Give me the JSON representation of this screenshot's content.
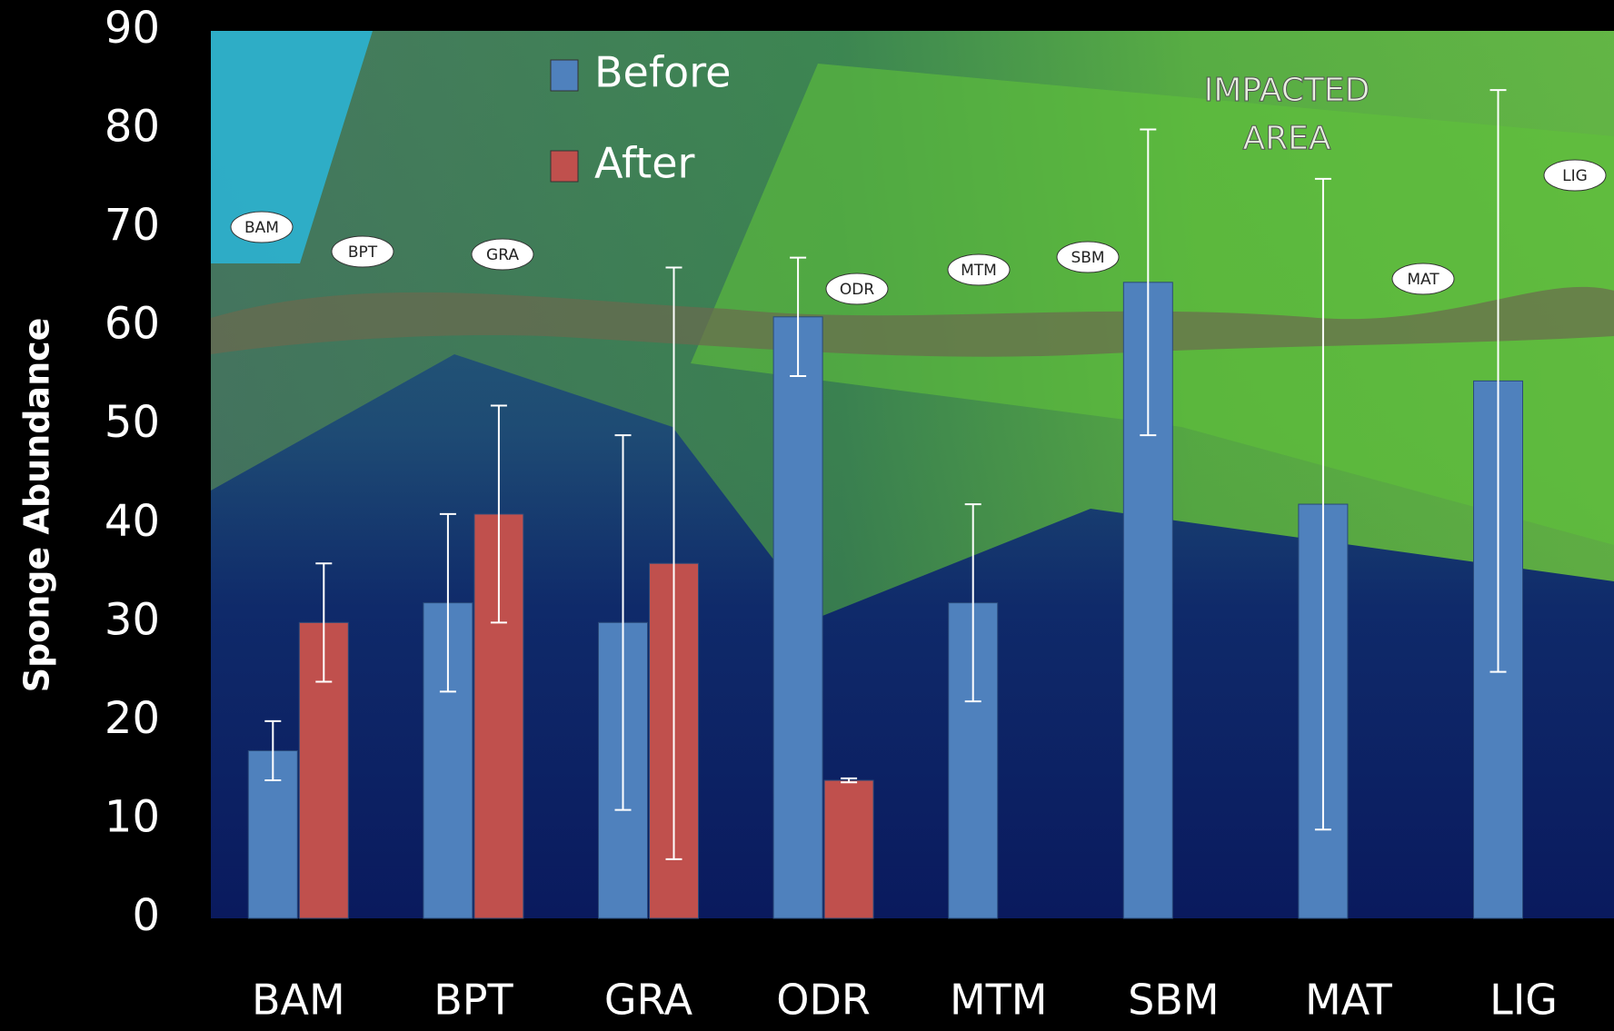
{
  "chart_data": {
    "type": "bar",
    "ylabel": "Sponge Abundance",
    "categories": [
      "BAM",
      "BPT",
      "GRA",
      "ODR",
      "MTM",
      "SBM",
      "MAT",
      "LIG"
    ],
    "series": [
      {
        "name": "Before",
        "color": "#4f81bd",
        "values": [
          17,
          32,
          30,
          61,
          32,
          64.5,
          42,
          54.5
        ],
        "errors": [
          3,
          9,
          19,
          6,
          10,
          15.5,
          33,
          29.5
        ]
      },
      {
        "name": "After",
        "color": "#c0504d",
        "values": [
          30,
          41,
          36,
          14,
          null,
          null,
          null,
          null
        ],
        "errors": [
          6,
          11,
          30,
          0.2,
          null,
          null,
          null,
          null
        ]
      }
    ],
    "ylim": [
      0,
      90
    ],
    "yticks": [
      0,
      10,
      20,
      30,
      40,
      50,
      60,
      70,
      80,
      90
    ],
    "annotation": [
      "IMPACTED",
      "AREA"
    ],
    "map_labels": [
      "BAM",
      "BPT",
      "GRA",
      "ODR",
      "MTM",
      "SBM",
      "MAT",
      "LIG"
    ]
  }
}
